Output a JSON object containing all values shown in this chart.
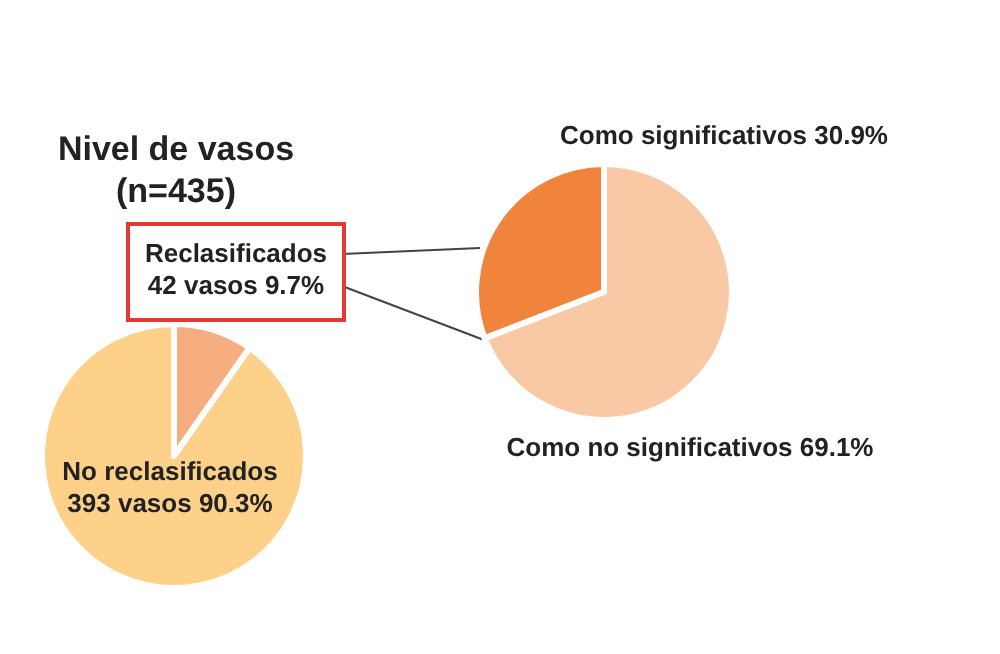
{
  "chart_data": [
    {
      "type": "pie",
      "title": "Nivel de vasos",
      "subtitle": "(n=435)",
      "categories": [
        "Reclasificados",
        "No reclasificados"
      ],
      "values": [
        9.7,
        90.3
      ],
      "value_labels": [
        "42 vasos 9.7%",
        "393 vasos 90.3%"
      ],
      "colors": [
        "#f6ad80",
        "#fdd18a"
      ]
    },
    {
      "type": "pie",
      "categories": [
        "Como significativos",
        "Como no significativos"
      ],
      "values": [
        30.9,
        69.1
      ],
      "value_labels": [
        "30.9%",
        "69.1%"
      ],
      "colors": [
        "#f0843c",
        "#f9c9a6"
      ]
    }
  ]
}
